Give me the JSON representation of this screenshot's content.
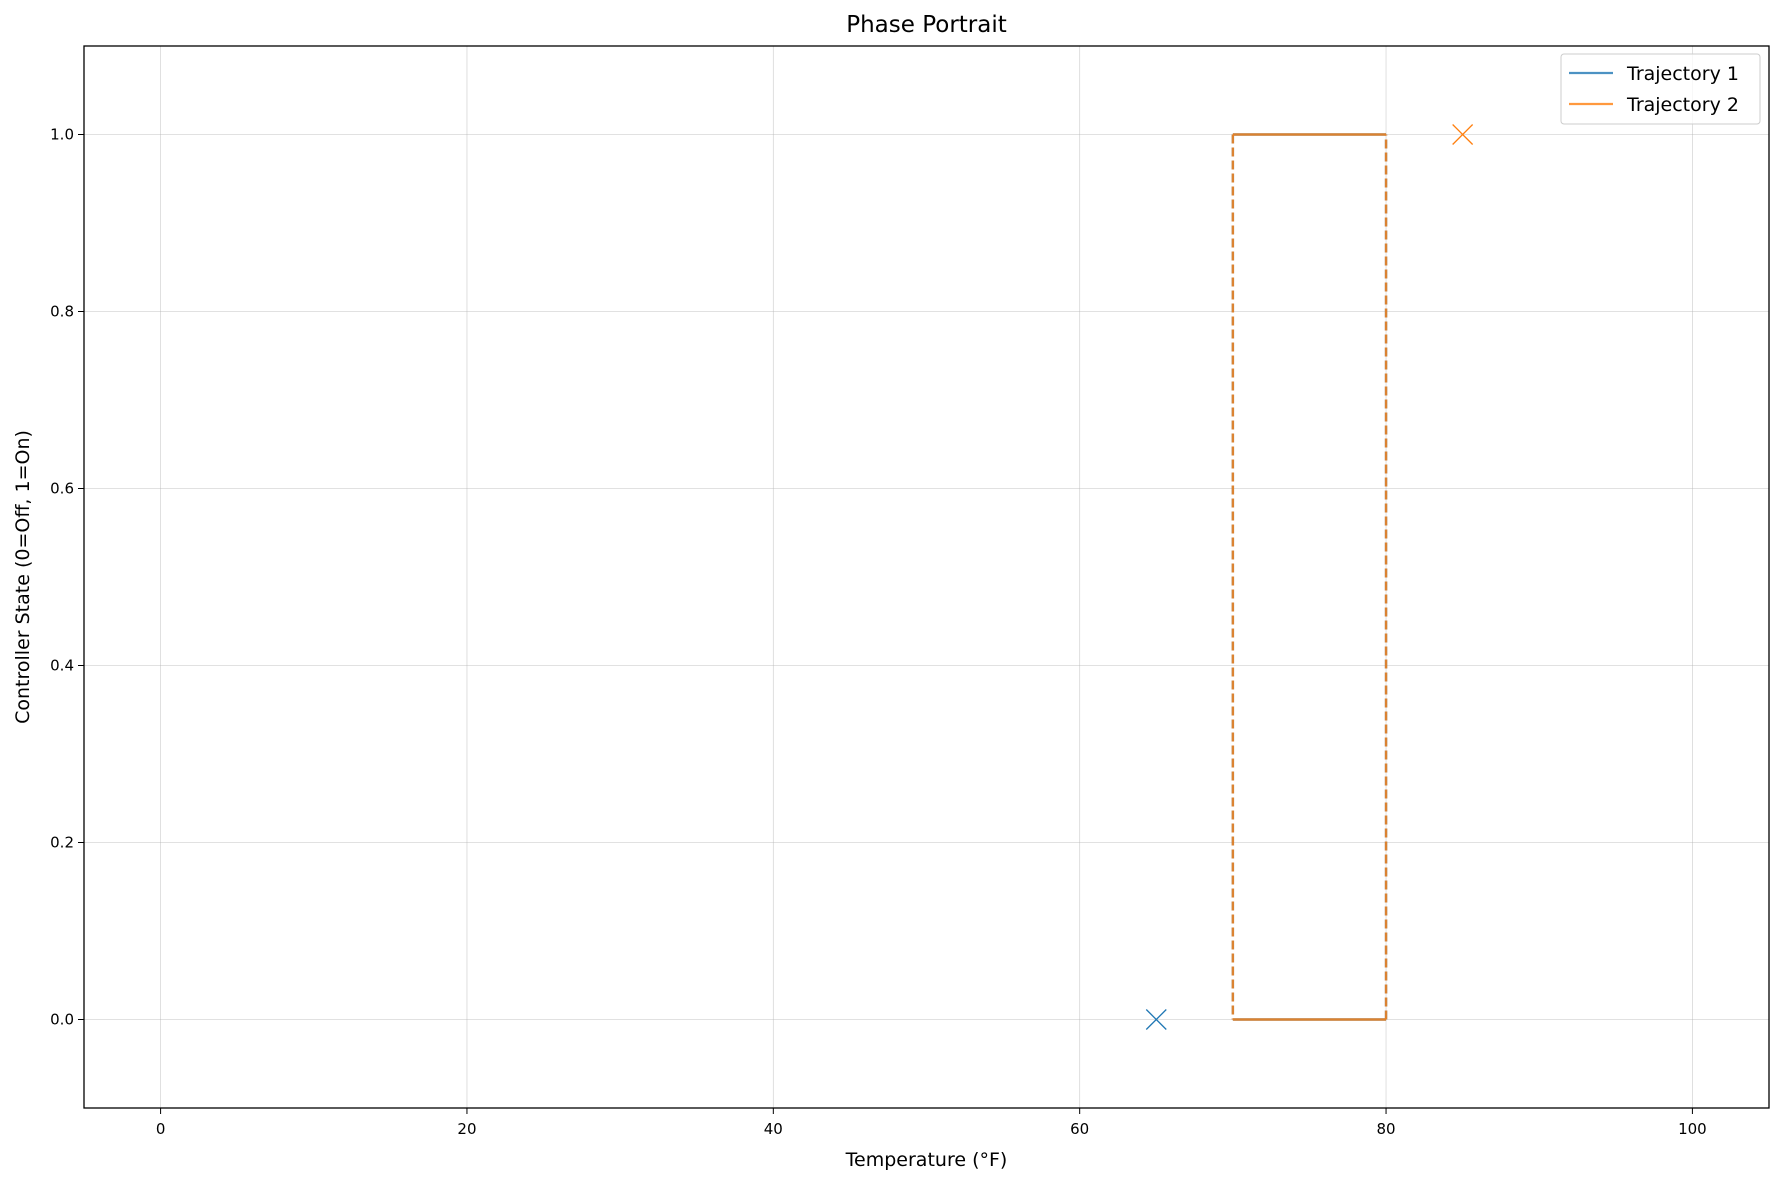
{
  "chart_data": {
    "type": "line",
    "title": "Phase Portrait",
    "xlabel": "Temperature (°F)",
    "ylabel": "Controller State (0=Off, 1=On)",
    "xlim": [
      -5,
      105
    ],
    "ylim": [
      -0.1,
      1.1
    ],
    "xticks": [
      0,
      20,
      40,
      60,
      80,
      100
    ],
    "yticks": [
      0.0,
      0.2,
      0.4,
      0.6,
      0.8,
      1.0
    ],
    "xtick_labels": [
      "0",
      "20",
      "40",
      "60",
      "80",
      "100"
    ],
    "ytick_labels": [
      "0.0",
      "0.2",
      "0.4",
      "0.6",
      "0.8",
      "1.0"
    ],
    "grid": true,
    "legend_position": "top-right",
    "series": [
      {
        "name": "Trajectory 1",
        "color": "#1f77b4",
        "path": [
          [
            70,
            0
          ],
          [
            80,
            0
          ],
          [
            80,
            1
          ],
          [
            70,
            1
          ],
          [
            70,
            0
          ]
        ],
        "horizontal_style": "solid",
        "vertical_style": "dashed",
        "start_marker": [
          65,
          0
        ]
      },
      {
        "name": "Trajectory 2",
        "color": "#ff7f0e",
        "path": [
          [
            70,
            0
          ],
          [
            80,
            0
          ],
          [
            80,
            1
          ],
          [
            70,
            1
          ],
          [
            70,
            0
          ]
        ],
        "horizontal_style": "solid",
        "vertical_style": "dashed",
        "start_marker": [
          85,
          1
        ]
      }
    ]
  }
}
